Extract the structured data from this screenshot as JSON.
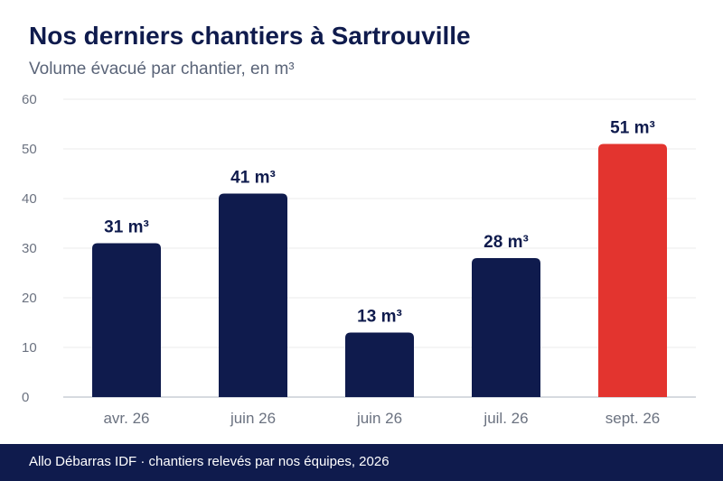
{
  "title": "Nos derniers chantiers à Sartrouville",
  "subtitle": "Volume évacué par chantier, en m³",
  "footer": "Allo Débarras IDF · chantiers relevés par nos équipes, 2026",
  "colors": {
    "primary": "#0f1b4d",
    "highlight": "#e3342f",
    "grid": "#ebebeb",
    "tick": "#6b7280"
  },
  "chart_data": {
    "type": "bar",
    "categories": [
      "avr. 26",
      "juin 26",
      "juin 26",
      "juil. 26",
      "sept. 26"
    ],
    "values": [
      31,
      41,
      13,
      28,
      51
    ],
    "value_labels": [
      "31 m³",
      "41 m³",
      "13 m³",
      "28 m³",
      "51 m³"
    ],
    "highlight_index": 4,
    "ylim": [
      0,
      60
    ],
    "yticks": [
      "0",
      "10",
      "20",
      "30",
      "40",
      "50",
      "60"
    ],
    "grid": true,
    "xlabel": "",
    "ylabel": ""
  }
}
